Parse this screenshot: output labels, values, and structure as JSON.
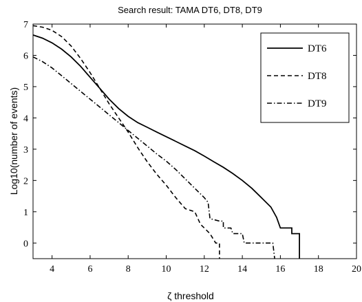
{
  "chart_data": {
    "type": "line",
    "title": "Search result: TAMA DT6, DT8, DT9",
    "xlabel": "ζ threshold",
    "ylabel": "Log10(number of events)",
    "xlim": [
      3,
      20
    ],
    "ylim": [
      -0.5,
      7
    ],
    "xticks": [
      4,
      6,
      8,
      10,
      12,
      14,
      16,
      18,
      20
    ],
    "yticks": [
      0,
      1,
      2,
      3,
      4,
      5,
      6,
      7
    ],
    "grid": false,
    "legend_position": "top-right",
    "series": [
      {
        "name": "DT6",
        "style": "solid",
        "points": [
          [
            3.0,
            6.65
          ],
          [
            3.5,
            6.55
          ],
          [
            4.0,
            6.4
          ],
          [
            4.5,
            6.2
          ],
          [
            5.0,
            5.95
          ],
          [
            5.5,
            5.65
          ],
          [
            6.0,
            5.3
          ],
          [
            6.5,
            4.95
          ],
          [
            7.0,
            4.6
          ],
          [
            7.5,
            4.3
          ],
          [
            8.0,
            4.05
          ],
          [
            8.5,
            3.85
          ],
          [
            9.0,
            3.7
          ],
          [
            9.5,
            3.55
          ],
          [
            10.0,
            3.4
          ],
          [
            10.5,
            3.25
          ],
          [
            11.0,
            3.1
          ],
          [
            11.5,
            2.95
          ],
          [
            12.0,
            2.78
          ],
          [
            12.5,
            2.6
          ],
          [
            13.0,
            2.42
          ],
          [
            13.5,
            2.22
          ],
          [
            14.0,
            2.0
          ],
          [
            14.5,
            1.75
          ],
          [
            15.0,
            1.45
          ],
          [
            15.5,
            1.15
          ],
          [
            15.8,
            0.82
          ],
          [
            16.0,
            0.48
          ],
          [
            16.6,
            0.48
          ],
          [
            16.6,
            0.3
          ],
          [
            17.0,
            0.3
          ],
          [
            17.0,
            -0.5
          ]
        ]
      },
      {
        "name": "DT8",
        "style": "dashed",
        "points": [
          [
            3.0,
            6.95
          ],
          [
            3.5,
            6.9
          ],
          [
            4.0,
            6.8
          ],
          [
            4.5,
            6.6
          ],
          [
            5.0,
            6.3
          ],
          [
            5.5,
            5.9
          ],
          [
            6.0,
            5.45
          ],
          [
            6.5,
            4.95
          ],
          [
            7.0,
            4.45
          ],
          [
            7.5,
            4.0
          ],
          [
            8.0,
            3.55
          ],
          [
            8.5,
            3.05
          ],
          [
            9.0,
            2.6
          ],
          [
            9.5,
            2.2
          ],
          [
            10.0,
            1.85
          ],
          [
            10.5,
            1.45
          ],
          [
            11.0,
            1.1
          ],
          [
            11.5,
            1.0
          ],
          [
            11.8,
            0.6
          ],
          [
            12.3,
            0.3
          ],
          [
            12.6,
            0.0
          ],
          [
            12.8,
            0.0
          ],
          [
            12.8,
            -0.5
          ]
        ]
      },
      {
        "name": "DT9",
        "style": "dashdot",
        "points": [
          [
            3.0,
            5.95
          ],
          [
            3.5,
            5.8
          ],
          [
            4.0,
            5.6
          ],
          [
            4.5,
            5.35
          ],
          [
            5.0,
            5.1
          ],
          [
            5.5,
            4.85
          ],
          [
            6.0,
            4.6
          ],
          [
            6.5,
            4.35
          ],
          [
            7.0,
            4.1
          ],
          [
            7.5,
            3.85
          ],
          [
            8.0,
            3.6
          ],
          [
            8.5,
            3.35
          ],
          [
            9.0,
            3.1
          ],
          [
            9.5,
            2.85
          ],
          [
            10.0,
            2.62
          ],
          [
            10.5,
            2.35
          ],
          [
            11.0,
            2.05
          ],
          [
            11.5,
            1.75
          ],
          [
            12.0,
            1.45
          ],
          [
            12.2,
            1.3
          ],
          [
            12.3,
            0.78
          ],
          [
            12.8,
            0.7
          ],
          [
            13.0,
            0.7
          ],
          [
            13.0,
            0.48
          ],
          [
            13.4,
            0.48
          ],
          [
            13.5,
            0.3
          ],
          [
            14.0,
            0.3
          ],
          [
            14.1,
            0.0
          ],
          [
            15.6,
            0.0
          ],
          [
            15.7,
            -0.5
          ]
        ]
      }
    ]
  }
}
